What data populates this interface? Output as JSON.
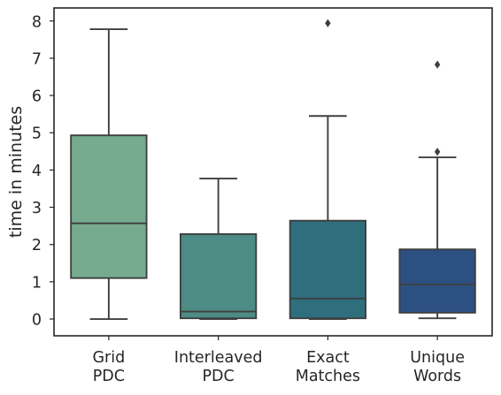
{
  "chart_data": {
    "type": "box",
    "title": "",
    "xlabel": "",
    "ylabel": "time in minutes",
    "ylim": [
      -0.45,
      8.35
    ],
    "yticks": [
      0,
      1,
      2,
      3,
      4,
      5,
      6,
      7,
      8
    ],
    "grid": false,
    "categories": [
      [
        "Grid",
        "PDC"
      ],
      [
        "Interleaved",
        "PDC"
      ],
      [
        "Exact",
        "Matches"
      ],
      [
        "Unique",
        "Words"
      ]
    ],
    "boxes": [
      {
        "category": "Grid PDC",
        "whisker_low": 0.0,
        "q1": 1.1,
        "median": 2.57,
        "q3": 4.93,
        "whisker_high": 7.78,
        "outliers": [],
        "color": "#76ab8f"
      },
      {
        "category": "Interleaved PDC",
        "whisker_low": 0.0,
        "q1": 0.02,
        "median": 0.2,
        "q3": 2.28,
        "whisker_high": 3.77,
        "outliers": [],
        "color": "#4d8c84"
      },
      {
        "category": "Exact Matches",
        "whisker_low": 0.0,
        "q1": 0.02,
        "median": 0.55,
        "q3": 2.64,
        "whisker_high": 5.45,
        "outliers": [
          7.94
        ],
        "color": "#2e6e7d"
      },
      {
        "category": "Unique Words",
        "whisker_low": 0.02,
        "q1": 0.17,
        "median": 0.93,
        "q3": 1.87,
        "whisker_high": 4.34,
        "outliers": [
          4.49,
          6.83
        ],
        "color": "#2c5082"
      }
    ],
    "line_color": "#3f3f3f",
    "frame_color": "#262626"
  }
}
